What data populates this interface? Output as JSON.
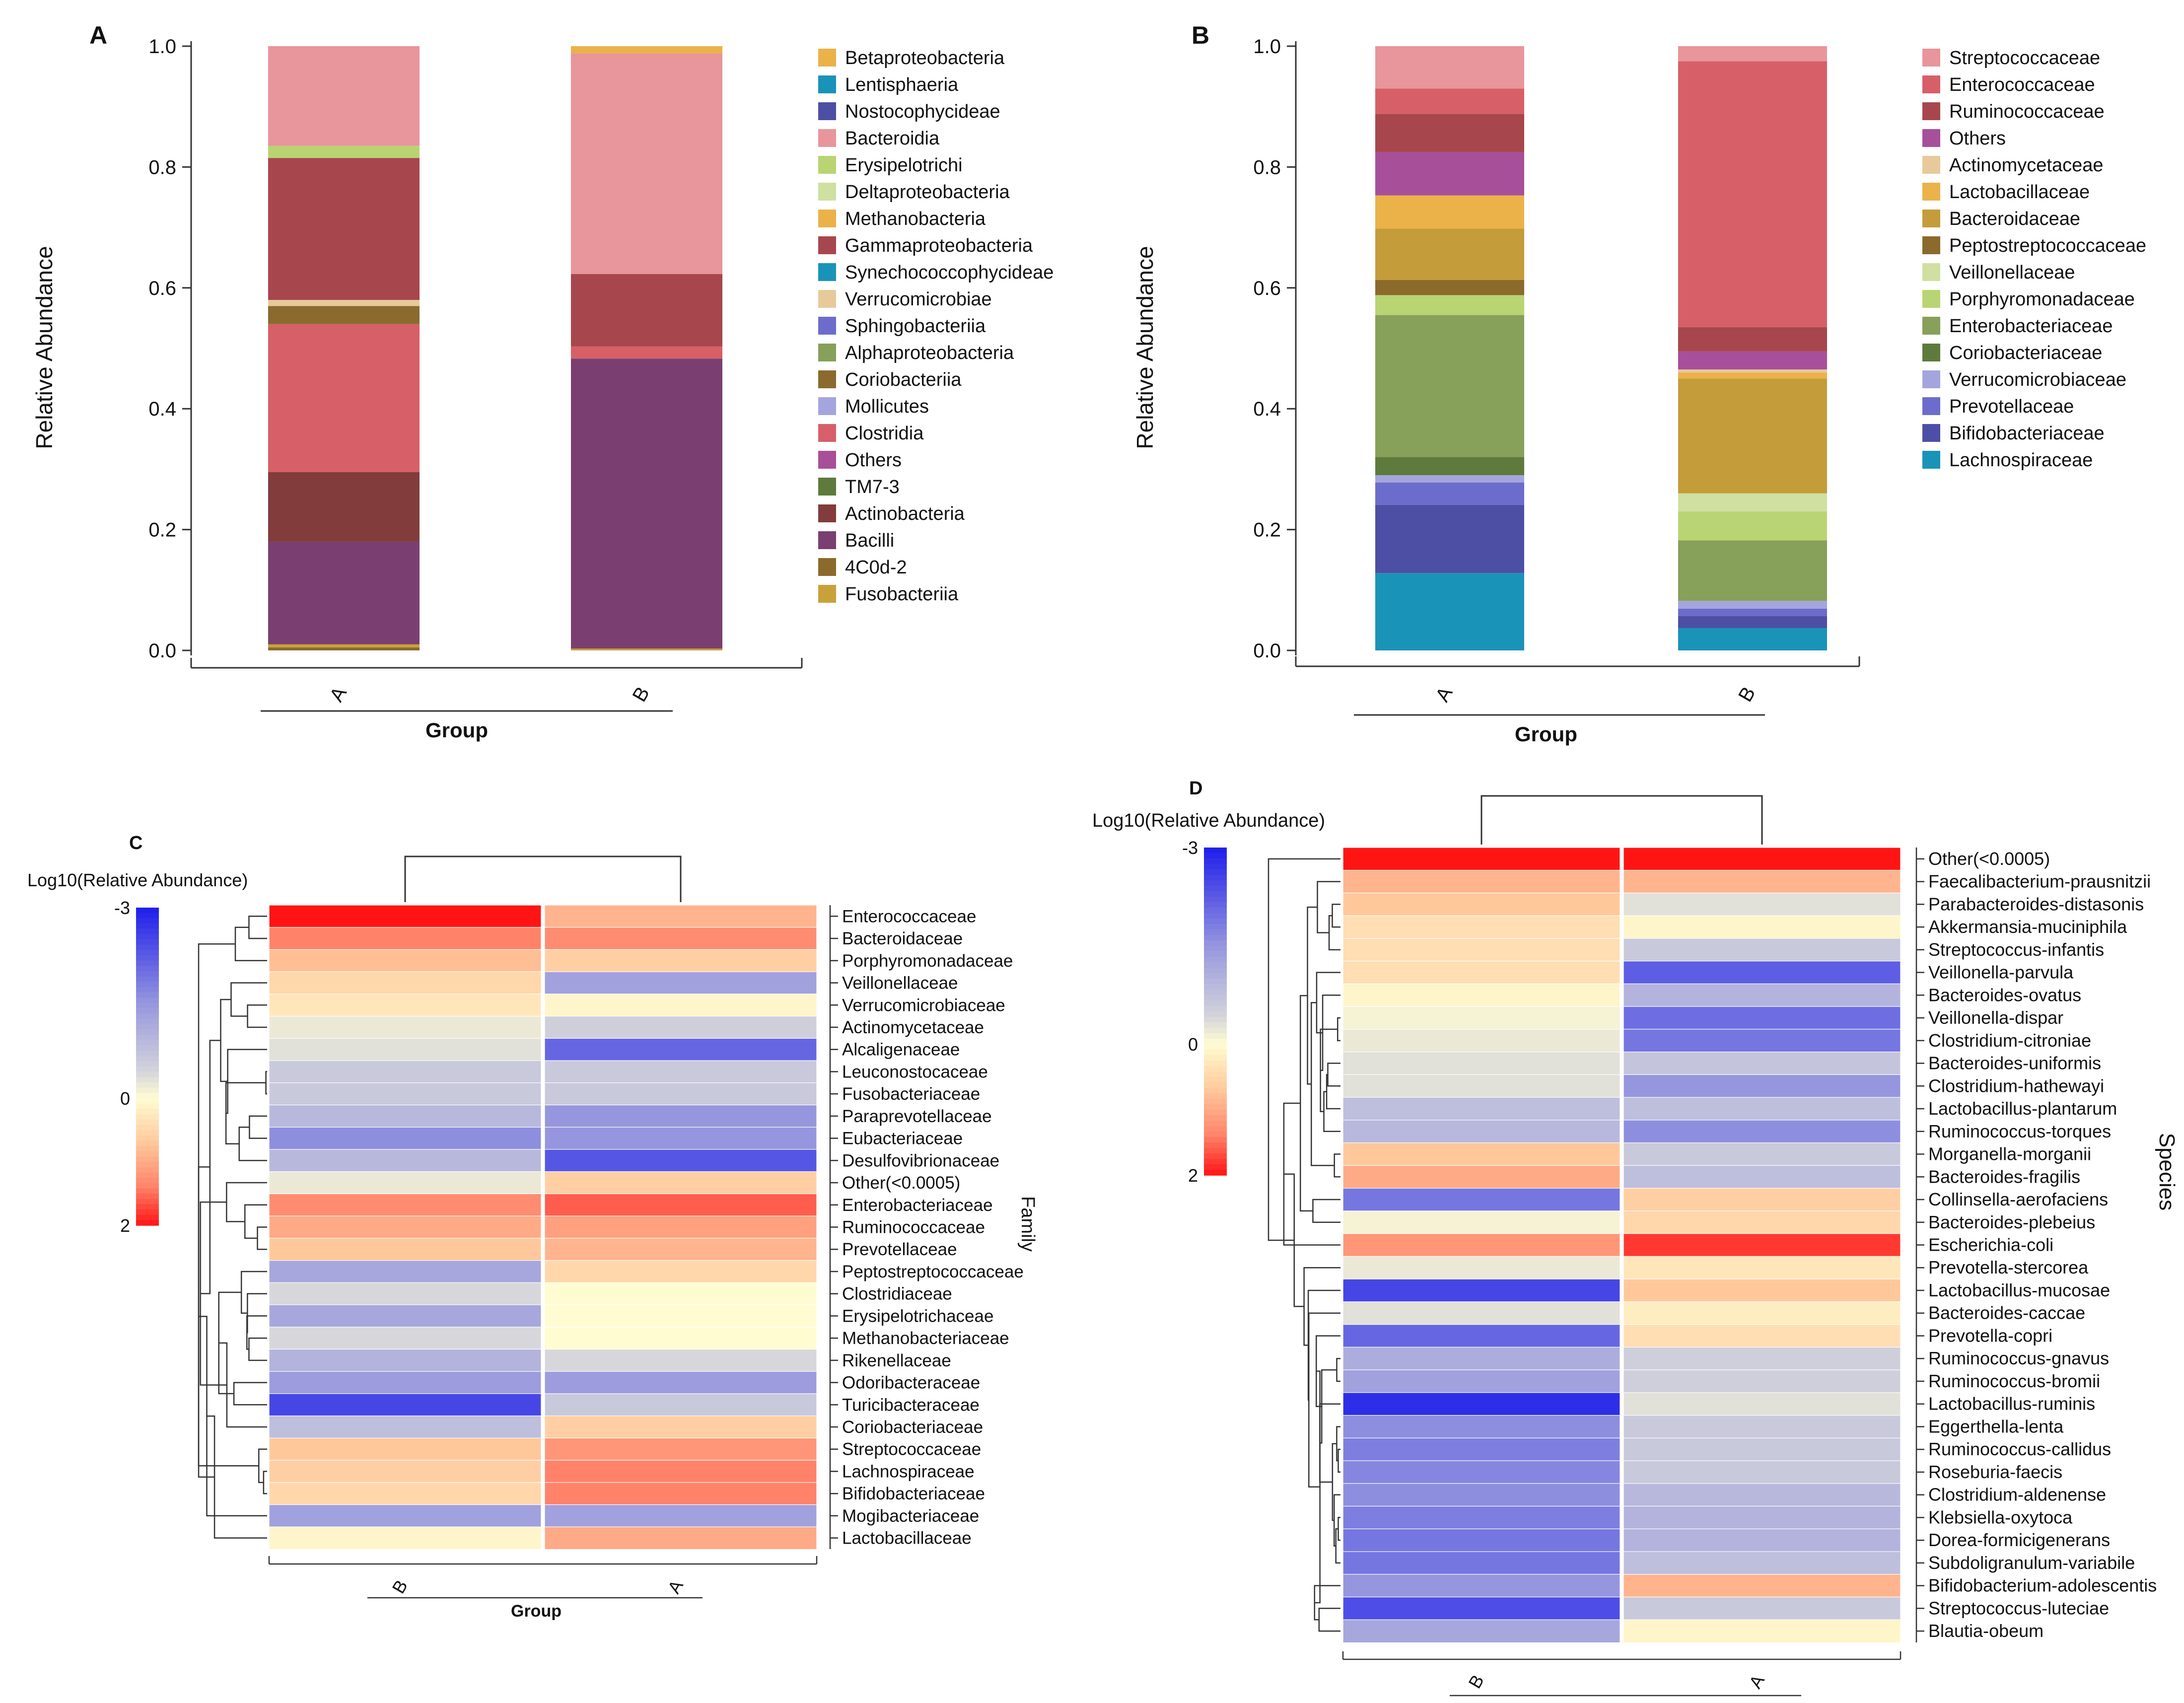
{
  "chart_data": [
    {
      "id": "A",
      "type": "bar",
      "stacked": true,
      "panel_label": "A",
      "xlabel": "Group",
      "ylabel": "Relative Abundance",
      "ylim": [
        0,
        1
      ],
      "yticks": [
        "0.0",
        "0.2",
        "0.4",
        "0.6",
        "0.8",
        "1.0"
      ],
      "categories": [
        "A",
        "B"
      ],
      "series": [
        {
          "name": "4C0d-2",
          "color": "#8b6a2b",
          "values": [
            0.005,
            0.0
          ]
        },
        {
          "name": "Fusobacteriia",
          "color": "#c9a13a",
          "values": [
            0.005,
            0.003
          ]
        },
        {
          "name": "Bacilli",
          "color": "#7a3f70",
          "values": [
            0.17,
            0.48
          ]
        },
        {
          "name": "Actinobacteria",
          "color": "#823c3c",
          "values": [
            0.115,
            0.0
          ]
        },
        {
          "name": "TM7-3",
          "color": "#5e7a3c",
          "values": [
            0.0,
            0.0
          ]
        },
        {
          "name": "Others",
          "color": "#a84f9a",
          "values": [
            0.0,
            0.0
          ]
        },
        {
          "name": "Clostridia",
          "color": "#d75f68",
          "values": [
            0.245,
            0.02
          ]
        },
        {
          "name": "Mollicutes",
          "color": "#a5a5de",
          "values": [
            0.0,
            0.0
          ]
        },
        {
          "name": "Coriobacteriia",
          "color": "#8a6a2e",
          "values": [
            0.03,
            0.0
          ]
        },
        {
          "name": "Alphaproteobacteria",
          "color": "#87a05a",
          "values": [
            0.0,
            0.0
          ]
        },
        {
          "name": "Sphingobacteriia",
          "color": "#6c6ccc",
          "values": [
            0.0,
            0.0
          ]
        },
        {
          "name": "Verrucomicrobiae",
          "color": "#e8c99b",
          "values": [
            0.01,
            0.0
          ]
        },
        {
          "name": "Synechococcophycideae",
          "color": "#1a93b8",
          "values": [
            0.0,
            0.0
          ]
        },
        {
          "name": "Gammaproteobacteria",
          "color": "#a8464d",
          "values": [
            0.235,
            0.12
          ]
        },
        {
          "name": "Methanobacteria",
          "color": "#ebb24a",
          "values": [
            0.0,
            0.0
          ]
        },
        {
          "name": "Deltaproteobacteria",
          "color": "#cfe0a0",
          "values": [
            0.0,
            0.0
          ]
        },
        {
          "name": "Erysipelotrichi",
          "color": "#b9d472",
          "values": [
            0.02,
            0.0
          ]
        },
        {
          "name": "Bacteroidia",
          "color": "#e8959b",
          "values": [
            0.165,
            0.365
          ]
        },
        {
          "name": "Nostocophycideae",
          "color": "#4d4fa5",
          "values": [
            0.0,
            0.0
          ]
        },
        {
          "name": "Lentisphaeria",
          "color": "#1a93b8",
          "values": [
            0.0,
            0.0
          ]
        },
        {
          "name": "Betaproteobacteria",
          "color": "#ebb24a",
          "values": [
            0.0,
            0.012
          ]
        }
      ],
      "legend": [
        {
          "name": "Betaproteobacteria",
          "color": "#ebb24a"
        },
        {
          "name": "Lentisphaeria",
          "color": "#1a93b8"
        },
        {
          "name": "Nostocophycideae",
          "color": "#4d4fa5"
        },
        {
          "name": "Bacteroidia",
          "color": "#e8959b"
        },
        {
          "name": "Erysipelotrichi",
          "color": "#b9d472"
        },
        {
          "name": "Deltaproteobacteria",
          "color": "#cfe0a0"
        },
        {
          "name": "Methanobacteria",
          "color": "#ebb24a"
        },
        {
          "name": "Gammaproteobacteria",
          "color": "#a8464d"
        },
        {
          "name": "Synechococcophycideae",
          "color": "#1a93b8"
        },
        {
          "name": "Verrucomicrobiae",
          "color": "#e8c99b"
        },
        {
          "name": "Sphingobacteriia",
          "color": "#6c6ccc"
        },
        {
          "name": "Alphaproteobacteria",
          "color": "#87a05a"
        },
        {
          "name": "Coriobacteriia",
          "color": "#8a6a2e"
        },
        {
          "name": "Mollicutes",
          "color": "#a5a5de"
        },
        {
          "name": "Clostridia",
          "color": "#d75f68"
        },
        {
          "name": "Others",
          "color": "#a84f9a"
        },
        {
          "name": "TM7-3",
          "color": "#5e7a3c"
        },
        {
          "name": "Actinobacteria",
          "color": "#823c3c"
        },
        {
          "name": "Bacilli",
          "color": "#7a3f70"
        },
        {
          "name": "4C0d-2",
          "color": "#8b6a2b"
        },
        {
          "name": "Fusobacteriia",
          "color": "#c9a13a"
        }
      ]
    },
    {
      "id": "B",
      "type": "bar",
      "stacked": true,
      "panel_label": "B",
      "xlabel": "Group",
      "ylabel": "Relative Abundance",
      "ylim": [
        0,
        1
      ],
      "yticks": [
        "0.0",
        "0.2",
        "0.4",
        "0.6",
        "0.8",
        "1.0"
      ],
      "categories": [
        "A",
        "B"
      ],
      "series": [
        {
          "name": "Lachnospiraceae",
          "color": "#1a93b8",
          "values": [
            0.128,
            0.037
          ]
        },
        {
          "name": "Bifidobacteriaceae",
          "color": "#4d4fa5",
          "values": [
            0.113,
            0.02
          ]
        },
        {
          "name": "Prevotellaceae",
          "color": "#6c6ccc",
          "values": [
            0.037,
            0.012
          ]
        },
        {
          "name": "Verrucomicrobiaceae",
          "color": "#a5a5de",
          "values": [
            0.012,
            0.013
          ]
        },
        {
          "name": "Coriobacteriaceae",
          "color": "#5e7a3c",
          "values": [
            0.03,
            0.0
          ]
        },
        {
          "name": "Enterobacteriaceae",
          "color": "#87a05a",
          "values": [
            0.235,
            0.1
          ]
        },
        {
          "name": "Porphyromonadaceae",
          "color": "#b9d472",
          "values": [
            0.033,
            0.048
          ]
        },
        {
          "name": "Veillonellaceae",
          "color": "#cfe0a0",
          "values": [
            0.0,
            0.03
          ]
        },
        {
          "name": "Peptostreptococcaceae",
          "color": "#8b6a2b",
          "values": [
            0.025,
            0.0
          ]
        },
        {
          "name": "Bacteroidaceae",
          "color": "#c49c3a",
          "values": [
            0.085,
            0.19
          ]
        },
        {
          "name": "Lactobacillaceae",
          "color": "#ebb24a",
          "values": [
            0.055,
            0.01
          ]
        },
        {
          "name": "Actinomycetaceae",
          "color": "#e8c99b",
          "values": [
            0.0,
            0.005
          ]
        },
        {
          "name": "Others",
          "color": "#a84f9a",
          "values": [
            0.072,
            0.03
          ]
        },
        {
          "name": "Ruminococcaceae",
          "color": "#a8464d",
          "values": [
            0.063,
            0.04
          ]
        },
        {
          "name": "Enterococcaceae",
          "color": "#d75f68",
          "values": [
            0.042,
            0.44
          ]
        },
        {
          "name": "Streptococcaceae",
          "color": "#e8959b",
          "values": [
            0.07,
            0.025
          ]
        }
      ],
      "legend": [
        {
          "name": "Streptococcaceae",
          "color": "#e8959b"
        },
        {
          "name": "Enterococcaceae",
          "color": "#d75f68"
        },
        {
          "name": "Ruminococcaceae",
          "color": "#a8464d"
        },
        {
          "name": "Others",
          "color": "#a84f9a"
        },
        {
          "name": "Actinomycetaceae",
          "color": "#e8c99b"
        },
        {
          "name": "Lactobacillaceae",
          "color": "#ebb24a"
        },
        {
          "name": "Bacteroidaceae",
          "color": "#c49c3a"
        },
        {
          "name": "Peptostreptococcaceae",
          "color": "#8b6a2b"
        },
        {
          "name": "Veillonellaceae",
          "color": "#cfe0a0"
        },
        {
          "name": "Porphyromonadaceae",
          "color": "#b9d472"
        },
        {
          "name": "Enterobacteriaceae",
          "color": "#87a05a"
        },
        {
          "name": "Coriobacteriaceae",
          "color": "#5e7a3c"
        },
        {
          "name": "Verrucomicrobiaceae",
          "color": "#a5a5de"
        },
        {
          "name": "Prevotellaceae",
          "color": "#6c6ccc"
        },
        {
          "name": "Bifidobacteriaceae",
          "color": "#4d4fa5"
        },
        {
          "name": "Lachnospiraceae",
          "color": "#1a93b8"
        }
      ]
    },
    {
      "id": "C",
      "type": "heatmap",
      "panel_label": "C",
      "scale_title": "Log10(Relative Abundance)",
      "scale_ticks": [
        "-3",
        "0",
        "2"
      ],
      "zlim": [
        -3,
        2
      ],
      "xlabel": "Group",
      "ylabel": "Family",
      "columns": [
        "B",
        "A"
      ],
      "rows": [
        "Enterococcaceae",
        "Bacteroidaceae",
        "Porphyromonadaceae",
        "Veillonellaceae",
        "Verrucomicrobiaceae",
        "Actinomycetaceae",
        "Alcaligenaceae",
        "Leuconostocaceae",
        "Fusobacteriaceae",
        "Paraprevotellaceae",
        "Eubacteriaceae",
        "Desulfovibrionaceae",
        "Other(<0.0005)",
        "Enterobacteriaceae",
        "Ruminococcaceae",
        "Prevotellaceae",
        "Peptostreptococcaceae",
        "Clostridiaceae",
        "Erysipelotrichaceae",
        "Methanobacteriaceae",
        "Rikenellaceae",
        "Odoribacteraceae",
        "Turicibacteraceae",
        "Coriobacteriaceae",
        "Streptococcaceae",
        "Lachnospiraceae",
        "Bifidobacteriaceae",
        "Mogibacteriaceae",
        "Lactobacillaceae"
      ],
      "values": [
        [
          2.0,
          0.9
        ],
        [
          1.4,
          1.3
        ],
        [
          0.8,
          0.6
        ],
        [
          0.5,
          -1.3
        ],
        [
          0.3,
          0.1
        ],
        [
          -0.2,
          -0.5
        ],
        [
          -0.3,
          -2.1
        ],
        [
          -0.6,
          -0.6
        ],
        [
          -0.6,
          -0.6
        ],
        [
          -0.9,
          -1.5
        ],
        [
          -1.6,
          -1.5
        ],
        [
          -0.9,
          -2.3
        ],
        [
          -0.2,
          0.6
        ],
        [
          1.3,
          1.6
        ],
        [
          1.0,
          1.1
        ],
        [
          0.7,
          0.9
        ],
        [
          -1.2,
          0.5
        ],
        [
          -0.4,
          0.0
        ],
        [
          -1.2,
          0.0
        ],
        [
          -0.4,
          0.0
        ],
        [
          -1.0,
          -0.4
        ],
        [
          -1.4,
          -1.4
        ],
        [
          -2.5,
          -0.6
        ],
        [
          -0.8,
          0.6
        ],
        [
          0.7,
          1.2
        ],
        [
          0.6,
          1.4
        ],
        [
          0.5,
          1.4
        ],
        [
          -1.3,
          -1.3
        ],
        [
          0.1,
          1.0
        ]
      ]
    },
    {
      "id": "D",
      "type": "heatmap",
      "panel_label": "D",
      "scale_title": "Log10(Relative Abundance)",
      "scale_ticks": [
        "-3",
        "0",
        "2"
      ],
      "zlim": [
        -3,
        2
      ],
      "ylabel": "Species",
      "columns": [
        "B",
        "A"
      ],
      "rows": [
        "Other(<0.0005)",
        "Faecalibacterium-prausnitzii",
        "Parabacteroides-distasonis",
        "Akkermansia-muciniphila",
        "Streptococcus-infantis",
        "Veillonella-parvula",
        "Bacteroides-ovatus",
        "Veillonella-dispar",
        "Clostridium-citroniae",
        "Bacteroides-uniformis",
        "Clostridium-hathewayi",
        "Lactobacillus-plantarum",
        "Ruminococcus-torques",
        "Morganella-morganii",
        "Bacteroides-fragilis",
        "Collinsella-aerofaciens",
        "Bacteroides-plebeius",
        "Escherichia-coli",
        "Prevotella-stercorea",
        "Lactobacillus-mucosae",
        "Bacteroides-caccae",
        "Prevotella-copri",
        "Ruminococcus-gnavus",
        "Ruminococcus-bromii",
        "Lactobacillus-ruminis",
        "Eggerthella-lenta",
        "Ruminococcus-callidus",
        "Roseburia-faecis",
        "Clostridium-aldenense",
        "Klebsiella-oxytoca",
        "Dorea-formicigenerans",
        "Subdoligranulum-variabile",
        "Bifidobacterium-adolescentis",
        "Streptococcus-luteciae",
        "Blautia-obeum"
      ],
      "values": [
        [
          2.0,
          2.0
        ],
        [
          0.9,
          0.9
        ],
        [
          0.7,
          -0.3
        ],
        [
          0.4,
          0.1
        ],
        [
          0.4,
          -0.6
        ],
        [
          0.4,
          -2.2
        ],
        [
          0.1,
          -1.0
        ],
        [
          -0.1,
          -2.0
        ],
        [
          -0.2,
          -1.9
        ],
        [
          -0.3,
          -0.7
        ],
        [
          -0.3,
          -1.5
        ],
        [
          -0.8,
          -0.8
        ],
        [
          -0.9,
          -1.6
        ],
        [
          0.7,
          -0.6
        ],
        [
          1.0,
          -0.8
        ],
        [
          -1.9,
          0.6
        ],
        [
          -0.1,
          0.5
        ],
        [
          1.2,
          1.8
        ],
        [
          -0.2,
          0.3
        ],
        [
          -2.5,
          0.7
        ],
        [
          -0.3,
          0.2
        ],
        [
          -2.1,
          0.4
        ],
        [
          -1.1,
          -0.5
        ],
        [
          -1.3,
          -0.5
        ],
        [
          -2.8,
          -0.3
        ],
        [
          -1.6,
          -0.6
        ],
        [
          -1.8,
          -0.6
        ],
        [
          -1.7,
          -0.6
        ],
        [
          -1.6,
          -0.9
        ],
        [
          -1.8,
          -1.0
        ],
        [
          -1.9,
          -1.0
        ],
        [
          -1.9,
          -0.8
        ],
        [
          -1.5,
          0.9
        ],
        [
          -2.4,
          -0.6
        ],
        [
          -1.2,
          0.1
        ]
      ]
    }
  ]
}
